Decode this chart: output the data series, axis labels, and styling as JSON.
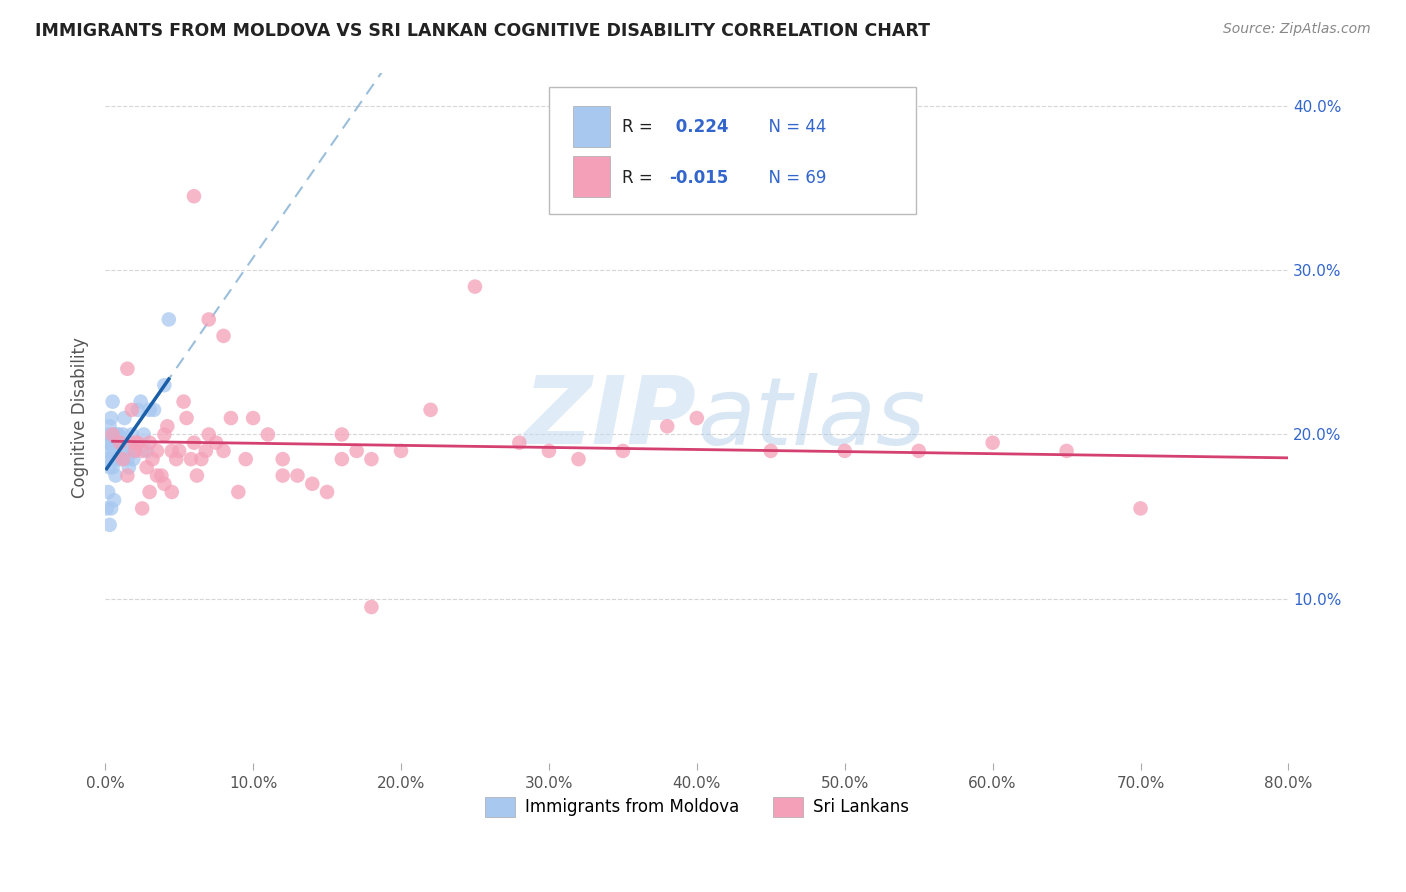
{
  "title": "IMMIGRANTS FROM MOLDOVA VS SRI LANKAN COGNITIVE DISABILITY CORRELATION CHART",
  "source": "Source: ZipAtlas.com",
  "ylabel": "Cognitive Disability",
  "legend_labels": [
    "Immigrants from Moldova",
    "Sri Lankans"
  ],
  "blue_color": "#A8C8F0",
  "pink_color": "#F4A0B8",
  "blue_line_color": "#1A5FA8",
  "pink_line_color": "#D44070",
  "dashed_line_color": "#90B8D8",
  "r_value_color": "#3366CC",
  "label_color": "#222222",
  "xlim": [
    0.0,
    0.8
  ],
  "ylim": [
    0.0,
    0.42
  ],
  "xticks": [
    0.0,
    0.1,
    0.2,
    0.3,
    0.4,
    0.5,
    0.6,
    0.7,
    0.8
  ],
  "yticks_right_labels": [
    "10.0%",
    "20.0%",
    "30.0%",
    "40.0%"
  ],
  "ytick_vals": [
    0.1,
    0.2,
    0.3,
    0.4
  ],
  "blue_scatter_x": [
    0.001,
    0.001,
    0.002,
    0.002,
    0.003,
    0.003,
    0.004,
    0.004,
    0.005,
    0.005,
    0.006,
    0.006,
    0.007,
    0.007,
    0.008,
    0.008,
    0.009,
    0.009,
    0.01,
    0.011,
    0.012,
    0.013,
    0.014,
    0.015,
    0.016,
    0.017,
    0.018,
    0.019,
    0.02,
    0.022,
    0.024,
    0.026,
    0.028,
    0.03,
    0.033,
    0.04,
    0.043,
    0.001,
    0.002,
    0.003,
    0.005,
    0.007,
    0.006,
    0.004
  ],
  "blue_scatter_y": [
    0.195,
    0.185,
    0.2,
    0.19,
    0.205,
    0.18,
    0.21,
    0.195,
    0.22,
    0.185,
    0.19,
    0.2,
    0.185,
    0.195,
    0.2,
    0.185,
    0.195,
    0.2,
    0.185,
    0.19,
    0.2,
    0.21,
    0.19,
    0.185,
    0.18,
    0.195,
    0.2,
    0.185,
    0.19,
    0.215,
    0.22,
    0.2,
    0.19,
    0.215,
    0.215,
    0.23,
    0.27,
    0.155,
    0.165,
    0.145,
    0.18,
    0.175,
    0.16,
    0.155
  ],
  "pink_scatter_x": [
    0.005,
    0.01,
    0.012,
    0.015,
    0.018,
    0.02,
    0.022,
    0.025,
    0.028,
    0.03,
    0.032,
    0.035,
    0.038,
    0.04,
    0.042,
    0.045,
    0.048,
    0.05,
    0.053,
    0.055,
    0.058,
    0.06,
    0.062,
    0.065,
    0.068,
    0.07,
    0.075,
    0.08,
    0.085,
    0.09,
    0.095,
    0.1,
    0.11,
    0.12,
    0.13,
    0.14,
    0.15,
    0.16,
    0.17,
    0.18,
    0.2,
    0.22,
    0.25,
    0.28,
    0.3,
    0.32,
    0.35,
    0.38,
    0.4,
    0.45,
    0.5,
    0.55,
    0.6,
    0.65,
    0.7,
    0.015,
    0.025,
    0.035,
    0.04,
    0.045,
    0.03,
    0.02,
    0.06,
    0.07,
    0.08,
    0.12,
    0.16,
    0.18
  ],
  "pink_scatter_y": [
    0.2,
    0.195,
    0.185,
    0.24,
    0.215,
    0.19,
    0.195,
    0.19,
    0.18,
    0.195,
    0.185,
    0.19,
    0.175,
    0.2,
    0.205,
    0.19,
    0.185,
    0.19,
    0.22,
    0.21,
    0.185,
    0.195,
    0.175,
    0.185,
    0.19,
    0.2,
    0.195,
    0.19,
    0.21,
    0.165,
    0.185,
    0.21,
    0.2,
    0.185,
    0.175,
    0.17,
    0.165,
    0.2,
    0.19,
    0.185,
    0.19,
    0.215,
    0.29,
    0.195,
    0.19,
    0.185,
    0.19,
    0.205,
    0.21,
    0.19,
    0.19,
    0.19,
    0.195,
    0.19,
    0.155,
    0.175,
    0.155,
    0.175,
    0.17,
    0.165,
    0.165,
    0.195,
    0.345,
    0.27,
    0.26,
    0.175,
    0.185,
    0.095
  ],
  "watermark_zip": "ZIP",
  "watermark_atlas": "atlas",
  "background_color": "#ffffff",
  "grid_color": "#cccccc",
  "tick_color": "#aaaaaa"
}
